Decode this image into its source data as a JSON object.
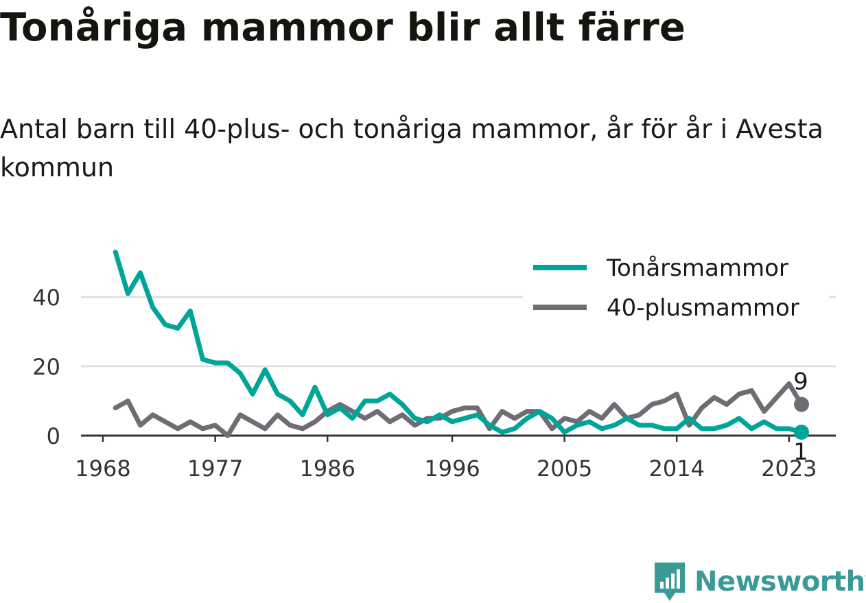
{
  "title": "Tonåriga mammor blir allt färre",
  "subtitle": "Antal barn till 40-plus- och tonåriga mammor, år för år i Avesta kommun",
  "brand": {
    "name": "Newsworthy",
    "icon": "newsworthy-bar-chart-icon",
    "color": "#3a9a96"
  },
  "chart_data": {
    "type": "line",
    "title": "Tonåriga mammor blir allt färre",
    "subtitle": "Antal barn till 40-plus- och tonåriga mammor, år för år i Avesta kommun",
    "xlabel": "",
    "ylabel": "",
    "xlim": [
      1968,
      2025
    ],
    "ylim": [
      0,
      55
    ],
    "x_ticks": [
      1968,
      1977,
      1986,
      1996,
      2005,
      2014,
      2023
    ],
    "y_ticks": [
      0,
      20,
      40
    ],
    "grid": true,
    "legend_position": "top-right",
    "x": [
      1969,
      1970,
      1971,
      1972,
      1973,
      1974,
      1975,
      1976,
      1977,
      1978,
      1979,
      1980,
      1981,
      1982,
      1983,
      1984,
      1985,
      1986,
      1987,
      1988,
      1989,
      1990,
      1991,
      1992,
      1993,
      1994,
      1995,
      1996,
      1997,
      1998,
      1999,
      2000,
      2001,
      2002,
      2003,
      2004,
      2005,
      2006,
      2007,
      2008,
      2009,
      2010,
      2011,
      2012,
      2013,
      2014,
      2015,
      2016,
      2017,
      2018,
      2019,
      2020,
      2021,
      2022,
      2023,
      2024
    ],
    "series": [
      {
        "name": "Tonårsmammor",
        "color": "#00a59a",
        "values": [
          53,
          41,
          47,
          37,
          32,
          31,
          36,
          22,
          21,
          21,
          18,
          12,
          19,
          12,
          10,
          6,
          14,
          6,
          8,
          5,
          10,
          10,
          12,
          9,
          5,
          4,
          6,
          4,
          5,
          6,
          3,
          1,
          2,
          5,
          7,
          5,
          1,
          3,
          4,
          2,
          3,
          5,
          3,
          3,
          2,
          2,
          5,
          2,
          2,
          3,
          5,
          2,
          4,
          2,
          2,
          1
        ],
        "end_label": "1"
      },
      {
        "name": "40-plusmammor",
        "color": "#6e6d74",
        "values": [
          8,
          10,
          3,
          6,
          4,
          2,
          4,
          2,
          3,
          0,
          6,
          4,
          2,
          6,
          3,
          2,
          4,
          7,
          9,
          7,
          5,
          7,
          4,
          6,
          3,
          5,
          5,
          7,
          8,
          8,
          2,
          7,
          5,
          7,
          7,
          2,
          5,
          4,
          7,
          5,
          9,
          5,
          6,
          9,
          10,
          12,
          3,
          8,
          11,
          9,
          12,
          13,
          7,
          11,
          15,
          9
        ],
        "end_label": "9"
      }
    ]
  }
}
